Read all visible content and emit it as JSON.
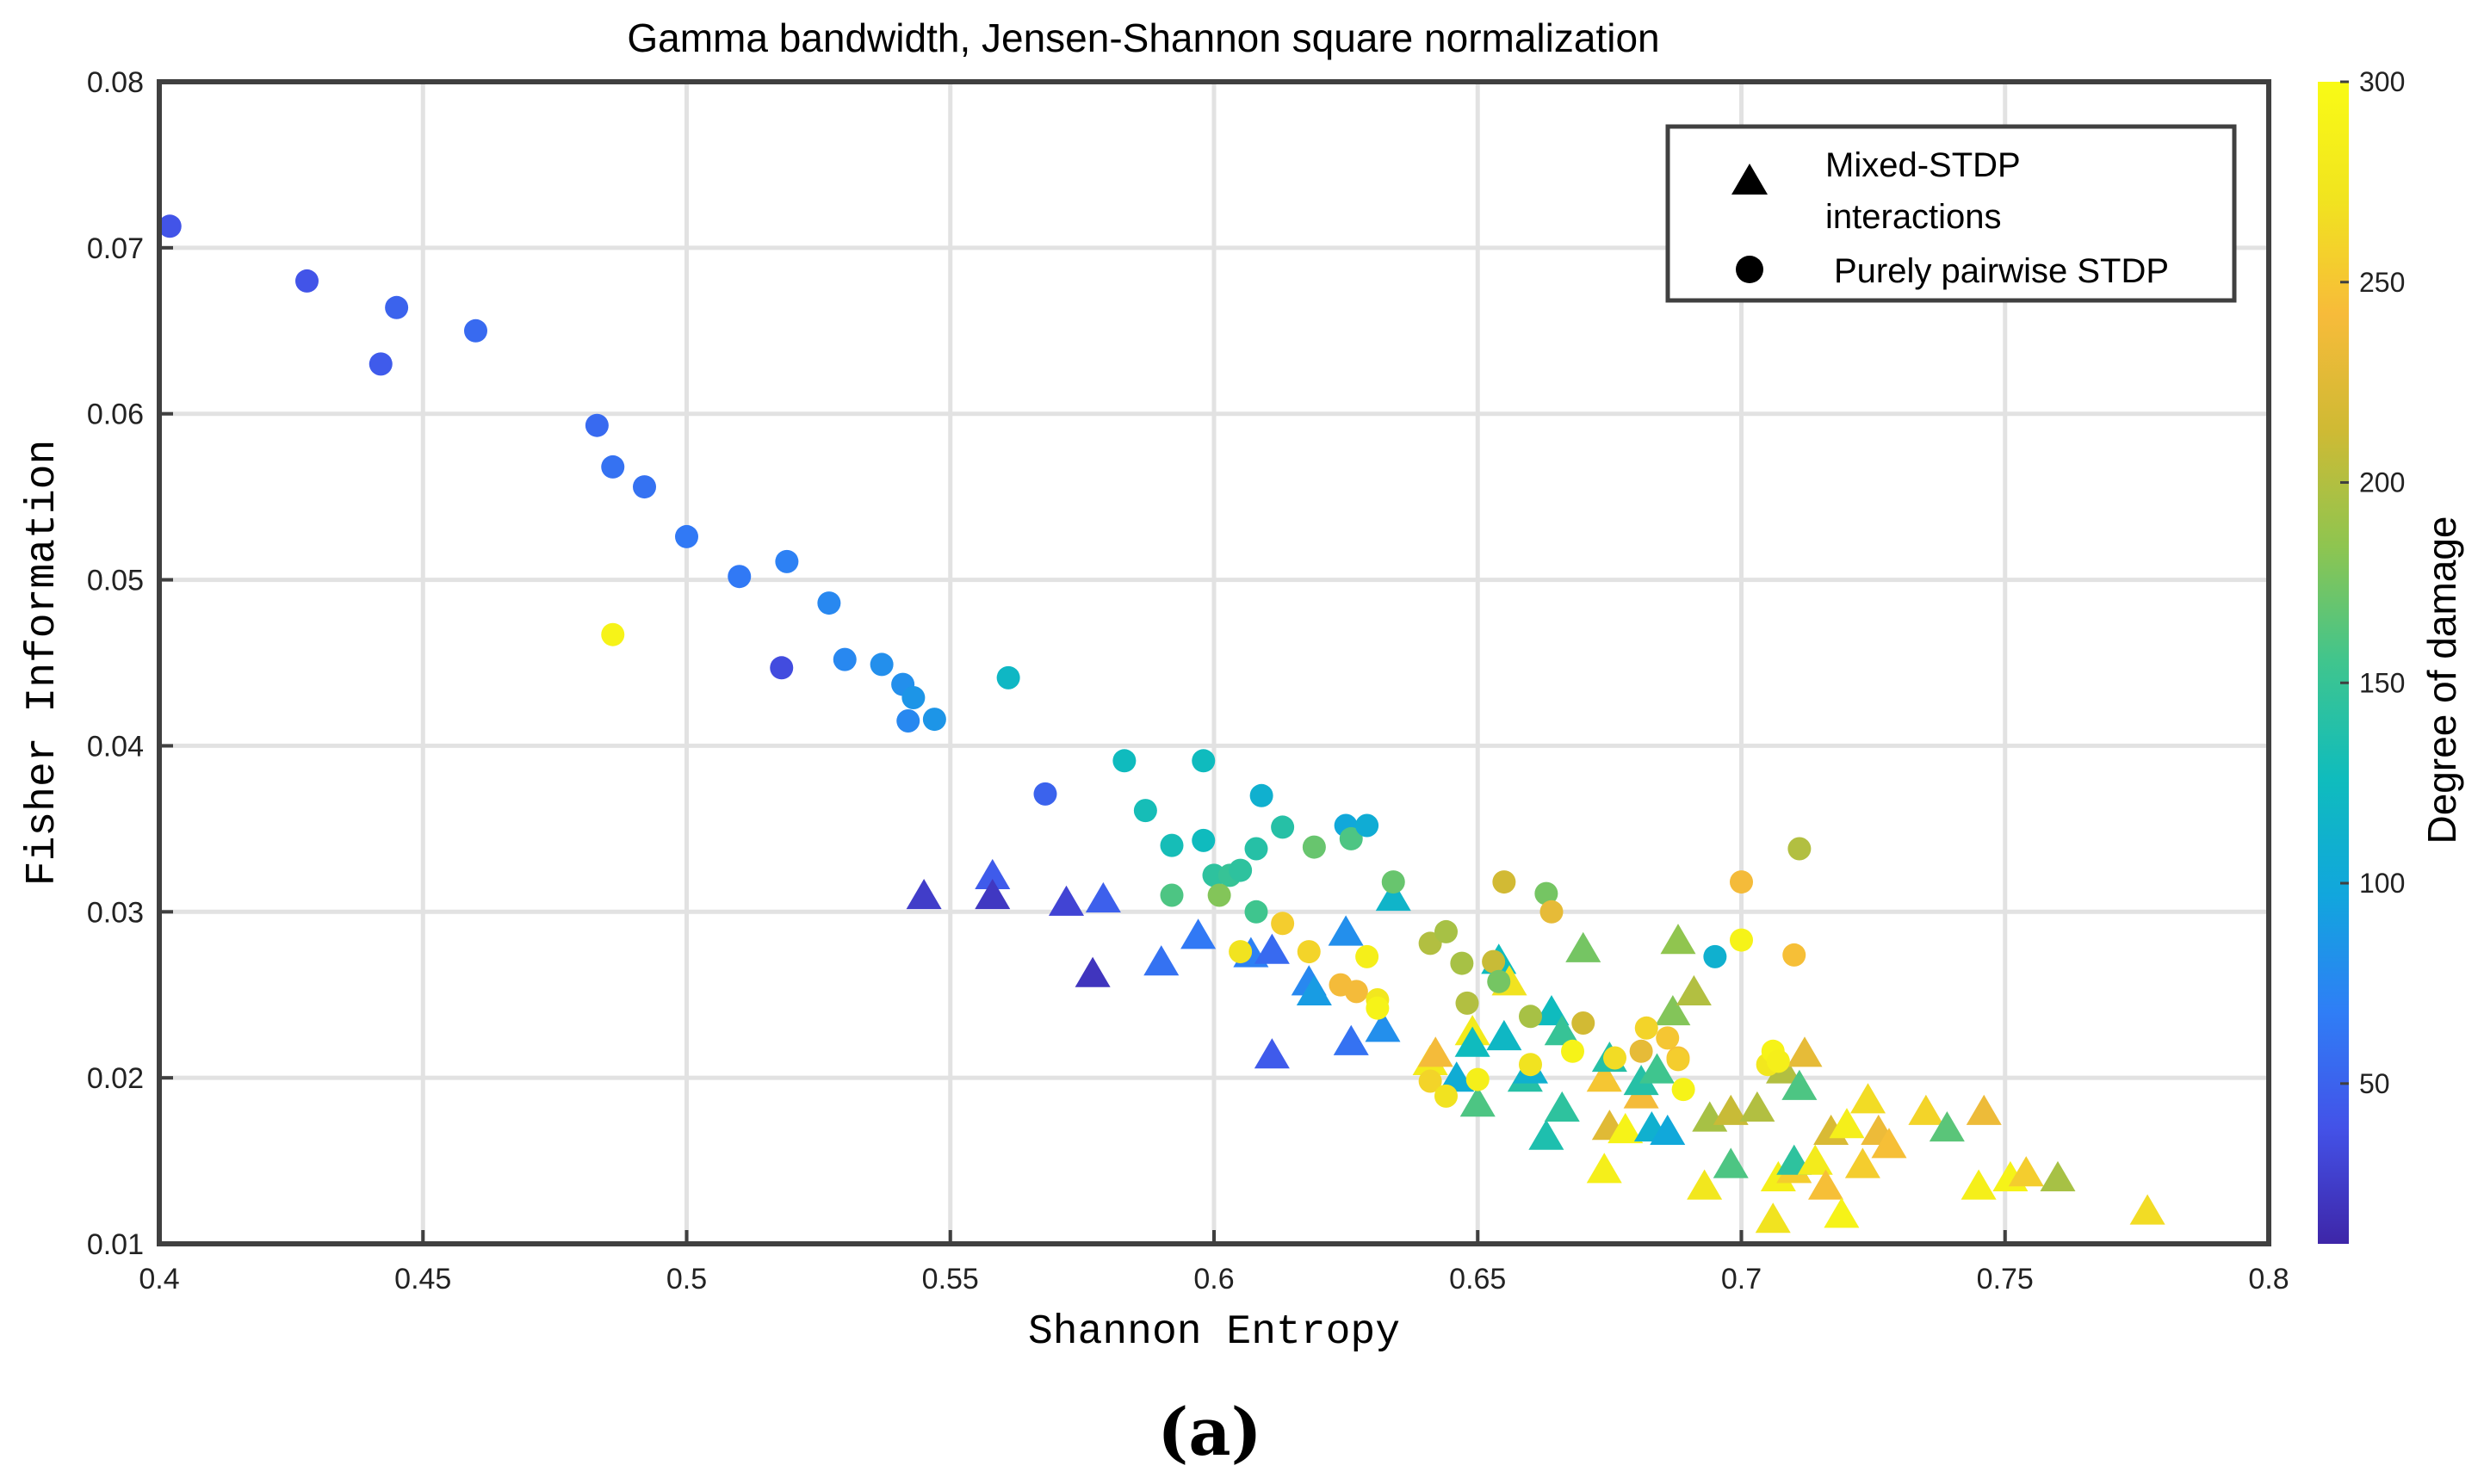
{
  "panel_label": "(a)",
  "chart_data": {
    "type": "scatter",
    "title": "Gamma bandwidth, Jensen-Shannon square normalization",
    "xlabel": "Shannon Entropy",
    "ylabel": "Fisher Information",
    "xlim": [
      0.4,
      0.8
    ],
    "ylim": [
      0.01,
      0.08
    ],
    "x_ticks": [
      0.4,
      0.45,
      0.5,
      0.55,
      0.6,
      0.65,
      0.7,
      0.75,
      0.8
    ],
    "x_tick_labels": [
      "0.4",
      "0.45",
      "0.5",
      "0.55",
      "0.6",
      "0.65",
      "0.7",
      "0.75",
      "0.8"
    ],
    "y_ticks": [
      0.01,
      0.02,
      0.03,
      0.04,
      0.05,
      0.06,
      0.07,
      0.08
    ],
    "y_tick_labels": [
      "0.01",
      "0.02",
      "0.03",
      "0.04",
      "0.05",
      "0.06",
      "0.07",
      "0.08"
    ],
    "grid": true,
    "legend": {
      "position": "top-right",
      "entries": [
        {
          "marker": "triangle",
          "label_line1": "Mixed-STDP",
          "label_line2": "interactions"
        },
        {
          "marker": "circle",
          "label_line1": "Purely pairwise STDP",
          "label_line2": ""
        }
      ]
    },
    "colorbar": {
      "label": "Degree of damage",
      "range": [
        10,
        300
      ],
      "ticks": [
        50,
        100,
        150,
        200,
        250,
        300
      ],
      "tick_labels": [
        "50",
        "100",
        "150",
        "200",
        "250",
        "300"
      ],
      "colormap": [
        "#3e26a8",
        "#4352e8",
        "#2f7ef6",
        "#11a6dd",
        "#0fbcbd",
        "#3fc58e",
        "#8ec550",
        "#cfba34",
        "#f7bb3a",
        "#f1e41f",
        "#f9fb15"
      ]
    },
    "series": [
      {
        "name": "Mixed-STDP interactions",
        "marker": "triangle",
        "points": [
          {
            "x": 0.545,
            "y": 0.031,
            "c": 25
          },
          {
            "x": 0.558,
            "y": 0.0322,
            "c": 45
          },
          {
            "x": 0.558,
            "y": 0.031,
            "c": 22
          },
          {
            "x": 0.572,
            "y": 0.0306,
            "c": 30
          },
          {
            "x": 0.579,
            "y": 0.0308,
            "c": 48
          },
          {
            "x": 0.577,
            "y": 0.0263,
            "c": 20
          },
          {
            "x": 0.59,
            "y": 0.027,
            "c": 60
          },
          {
            "x": 0.597,
            "y": 0.0286,
            "c": 65
          },
          {
            "x": 0.607,
            "y": 0.0275,
            "c": 70
          },
          {
            "x": 0.611,
            "y": 0.0277,
            "c": 55
          },
          {
            "x": 0.611,
            "y": 0.0214,
            "c": 45
          },
          {
            "x": 0.618,
            "y": 0.0258,
            "c": 75
          },
          {
            "x": 0.619,
            "y": 0.0252,
            "c": 90
          },
          {
            "x": 0.625,
            "y": 0.0288,
            "c": 80
          },
          {
            "x": 0.626,
            "y": 0.0222,
            "c": 60
          },
          {
            "x": 0.632,
            "y": 0.023,
            "c": 80
          },
          {
            "x": 0.634,
            "y": 0.0309,
            "c": 115
          },
          {
            "x": 0.641,
            "y": 0.021,
            "c": 280
          },
          {
            "x": 0.642,
            "y": 0.0215,
            "c": 240
          },
          {
            "x": 0.646,
            "y": 0.02,
            "c": 105
          },
          {
            "x": 0.649,
            "y": 0.0228,
            "c": 280
          },
          {
            "x": 0.649,
            "y": 0.0221,
            "c": 125
          },
          {
            "x": 0.65,
            "y": 0.0185,
            "c": 160
          },
          {
            "x": 0.654,
            "y": 0.0271,
            "c": 125
          },
          {
            "x": 0.655,
            "y": 0.0225,
            "c": 120
          },
          {
            "x": 0.656,
            "y": 0.0258,
            "c": 270
          },
          {
            "x": 0.659,
            "y": 0.02,
            "c": 140
          },
          {
            "x": 0.66,
            "y": 0.0205,
            "c": 110
          },
          {
            "x": 0.663,
            "y": 0.0165,
            "c": 135
          },
          {
            "x": 0.664,
            "y": 0.024,
            "c": 125
          },
          {
            "x": 0.666,
            "y": 0.0228,
            "c": 150
          },
          {
            "x": 0.666,
            "y": 0.0182,
            "c": 145
          },
          {
            "x": 0.67,
            "y": 0.0278,
            "c": 175
          },
          {
            "x": 0.674,
            "y": 0.02,
            "c": 250
          },
          {
            "x": 0.674,
            "y": 0.0145,
            "c": 285
          },
          {
            "x": 0.675,
            "y": 0.0212,
            "c": 140
          },
          {
            "x": 0.675,
            "y": 0.0171,
            "c": 225
          },
          {
            "x": 0.678,
            "y": 0.0169,
            "c": 290
          },
          {
            "x": 0.681,
            "y": 0.019,
            "c": 240
          },
          {
            "x": 0.681,
            "y": 0.0198,
            "c": 140
          },
          {
            "x": 0.683,
            "y": 0.017,
            "c": 110
          },
          {
            "x": 0.684,
            "y": 0.0205,
            "c": 155
          },
          {
            "x": 0.686,
            "y": 0.0168,
            "c": 100
          },
          {
            "x": 0.687,
            "y": 0.024,
            "c": 180
          },
          {
            "x": 0.688,
            "y": 0.0283,
            "c": 185
          },
          {
            "x": 0.691,
            "y": 0.0252,
            "c": 200
          },
          {
            "x": 0.693,
            "y": 0.0135,
            "c": 275
          },
          {
            "x": 0.694,
            "y": 0.0176,
            "c": 195
          },
          {
            "x": 0.698,
            "y": 0.018,
            "c": 210
          },
          {
            "x": 0.698,
            "y": 0.0148,
            "c": 160
          },
          {
            "x": 0.703,
            "y": 0.0182,
            "c": 200
          },
          {
            "x": 0.706,
            "y": 0.0115,
            "c": 270
          },
          {
            "x": 0.707,
            "y": 0.014,
            "c": 285
          },
          {
            "x": 0.708,
            "y": 0.0205,
            "c": 200
          },
          {
            "x": 0.71,
            "y": 0.0145,
            "c": 255
          },
          {
            "x": 0.71,
            "y": 0.015,
            "c": 145
          },
          {
            "x": 0.711,
            "y": 0.0195,
            "c": 160
          },
          {
            "x": 0.712,
            "y": 0.0215,
            "c": 230
          },
          {
            "x": 0.714,
            "y": 0.015,
            "c": 280
          },
          {
            "x": 0.716,
            "y": 0.0135,
            "c": 245
          },
          {
            "x": 0.717,
            "y": 0.0168,
            "c": 220
          },
          {
            "x": 0.719,
            "y": 0.0118,
            "c": 290
          },
          {
            "x": 0.72,
            "y": 0.0172,
            "c": 285
          },
          {
            "x": 0.723,
            "y": 0.0148,
            "c": 255
          },
          {
            "x": 0.724,
            "y": 0.0187,
            "c": 265
          },
          {
            "x": 0.726,
            "y": 0.0168,
            "c": 235
          },
          {
            "x": 0.728,
            "y": 0.016,
            "c": 245
          },
          {
            "x": 0.735,
            "y": 0.018,
            "c": 260
          },
          {
            "x": 0.739,
            "y": 0.017,
            "c": 165
          },
          {
            "x": 0.745,
            "y": 0.0135,
            "c": 285
          },
          {
            "x": 0.746,
            "y": 0.018,
            "c": 235
          },
          {
            "x": 0.751,
            "y": 0.014,
            "c": 290
          },
          {
            "x": 0.754,
            "y": 0.0143,
            "c": 255
          },
          {
            "x": 0.76,
            "y": 0.014,
            "c": 195
          },
          {
            "x": 0.777,
            "y": 0.012,
            "c": 265
          }
        ]
      },
      {
        "name": "Purely pairwise STDP",
        "marker": "circle",
        "points": [
          {
            "x": 0.402,
            "y": 0.0713,
            "c": 40
          },
          {
            "x": 0.428,
            "y": 0.068,
            "c": 40
          },
          {
            "x": 0.445,
            "y": 0.0664,
            "c": 50
          },
          {
            "x": 0.442,
            "y": 0.063,
            "c": 45
          },
          {
            "x": 0.46,
            "y": 0.065,
            "c": 55
          },
          {
            "x": 0.483,
            "y": 0.0593,
            "c": 55
          },
          {
            "x": 0.486,
            "y": 0.0568,
            "c": 60
          },
          {
            "x": 0.492,
            "y": 0.0556,
            "c": 60
          },
          {
            "x": 0.5,
            "y": 0.0526,
            "c": 65
          },
          {
            "x": 0.51,
            "y": 0.0502,
            "c": 65
          },
          {
            "x": 0.519,
            "y": 0.0511,
            "c": 70
          },
          {
            "x": 0.486,
            "y": 0.0467,
            "c": 290
          },
          {
            "x": 0.518,
            "y": 0.0447,
            "c": 35
          },
          {
            "x": 0.527,
            "y": 0.0486,
            "c": 75
          },
          {
            "x": 0.53,
            "y": 0.0452,
            "c": 75
          },
          {
            "x": 0.537,
            "y": 0.0449,
            "c": 80
          },
          {
            "x": 0.541,
            "y": 0.0437,
            "c": 80
          },
          {
            "x": 0.543,
            "y": 0.0429,
            "c": 85
          },
          {
            "x": 0.542,
            "y": 0.0415,
            "c": 75
          },
          {
            "x": 0.547,
            "y": 0.0416,
            "c": 85
          },
          {
            "x": 0.561,
            "y": 0.0441,
            "c": 120
          },
          {
            "x": 0.568,
            "y": 0.0371,
            "c": 50
          },
          {
            "x": 0.583,
            "y": 0.0391,
            "c": 125
          },
          {
            "x": 0.587,
            "y": 0.0361,
            "c": 130
          },
          {
            "x": 0.592,
            "y": 0.034,
            "c": 130
          },
          {
            "x": 0.598,
            "y": 0.0391,
            "c": 125
          },
          {
            "x": 0.598,
            "y": 0.0343,
            "c": 125
          },
          {
            "x": 0.592,
            "y": 0.031,
            "c": 160
          },
          {
            "x": 0.6,
            "y": 0.0322,
            "c": 145
          },
          {
            "x": 0.603,
            "y": 0.0322,
            "c": 150
          },
          {
            "x": 0.601,
            "y": 0.031,
            "c": 180
          },
          {
            "x": 0.605,
            "y": 0.0325,
            "c": 145
          },
          {
            "x": 0.608,
            "y": 0.0338,
            "c": 140
          },
          {
            "x": 0.609,
            "y": 0.037,
            "c": 110
          },
          {
            "x": 0.613,
            "y": 0.0351,
            "c": 140
          },
          {
            "x": 0.608,
            "y": 0.03,
            "c": 155
          },
          {
            "x": 0.619,
            "y": 0.0339,
            "c": 170
          },
          {
            "x": 0.625,
            "y": 0.0352,
            "c": 100
          },
          {
            "x": 0.626,
            "y": 0.0344,
            "c": 160
          },
          {
            "x": 0.629,
            "y": 0.0352,
            "c": 105
          },
          {
            "x": 0.634,
            "y": 0.0318,
            "c": 170
          },
          {
            "x": 0.605,
            "y": 0.0276,
            "c": 270
          },
          {
            "x": 0.613,
            "y": 0.0293,
            "c": 255
          },
          {
            "x": 0.618,
            "y": 0.0276,
            "c": 260
          },
          {
            "x": 0.629,
            "y": 0.0273,
            "c": 285
          },
          {
            "x": 0.624,
            "y": 0.0256,
            "c": 240
          },
          {
            "x": 0.627,
            "y": 0.0252,
            "c": 240
          },
          {
            "x": 0.631,
            "y": 0.0247,
            "c": 275
          },
          {
            "x": 0.631,
            "y": 0.0242,
            "c": 290
          },
          {
            "x": 0.641,
            "y": 0.0281,
            "c": 200
          },
          {
            "x": 0.644,
            "y": 0.0288,
            "c": 195
          },
          {
            "x": 0.647,
            "y": 0.0269,
            "c": 195
          },
          {
            "x": 0.653,
            "y": 0.027,
            "c": 210
          },
          {
            "x": 0.654,
            "y": 0.0258,
            "c": 175
          },
          {
            "x": 0.648,
            "y": 0.0245,
            "c": 200
          },
          {
            "x": 0.655,
            "y": 0.0318,
            "c": 215
          },
          {
            "x": 0.663,
            "y": 0.0311,
            "c": 175
          },
          {
            "x": 0.664,
            "y": 0.03,
            "c": 230
          },
          {
            "x": 0.66,
            "y": 0.0237,
            "c": 195
          },
          {
            "x": 0.67,
            "y": 0.0233,
            "c": 215
          },
          {
            "x": 0.641,
            "y": 0.0198,
            "c": 260
          },
          {
            "x": 0.644,
            "y": 0.0189,
            "c": 270
          },
          {
            "x": 0.65,
            "y": 0.0199,
            "c": 285
          },
          {
            "x": 0.66,
            "y": 0.0208,
            "c": 270
          },
          {
            "x": 0.668,
            "y": 0.0216,
            "c": 290
          },
          {
            "x": 0.676,
            "y": 0.0212,
            "c": 265
          },
          {
            "x": 0.681,
            "y": 0.0216,
            "c": 230
          },
          {
            "x": 0.682,
            "y": 0.023,
            "c": 260
          },
          {
            "x": 0.686,
            "y": 0.0224,
            "c": 250
          },
          {
            "x": 0.688,
            "y": 0.0212,
            "c": 245
          },
          {
            "x": 0.688,
            "y": 0.0211,
            "c": 255
          },
          {
            "x": 0.689,
            "y": 0.0193,
            "c": 290
          },
          {
            "x": 0.695,
            "y": 0.0273,
            "c": 110
          },
          {
            "x": 0.7,
            "y": 0.0283,
            "c": 290
          },
          {
            "x": 0.7,
            "y": 0.0318,
            "c": 240
          },
          {
            "x": 0.705,
            "y": 0.0208,
            "c": 275
          },
          {
            "x": 0.706,
            "y": 0.0216,
            "c": 290
          },
          {
            "x": 0.707,
            "y": 0.021,
            "c": 285
          },
          {
            "x": 0.71,
            "y": 0.0274,
            "c": 245
          },
          {
            "x": 0.711,
            "y": 0.0338,
            "c": 200
          }
        ]
      }
    ]
  }
}
